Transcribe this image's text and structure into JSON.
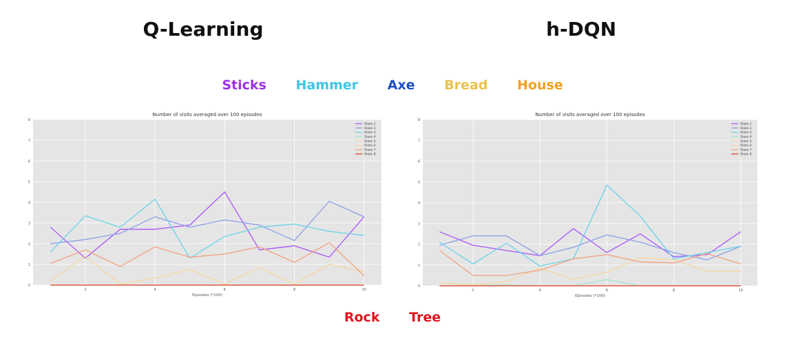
{
  "headings": {
    "left": "Q-Learning",
    "right": "h-DQN"
  },
  "top_labels": [
    {
      "text": "Sticks",
      "color": "#9b30e8"
    },
    {
      "text": "Hammer",
      "color": "#3ec6e3"
    },
    {
      "text": "Axe",
      "color": "#1e4fc4"
    },
    {
      "text": "Bread",
      "color": "#e8c24a"
    },
    {
      "text": "House",
      "color": "#f0a020"
    }
  ],
  "bottom_labels": [
    {
      "text": "Rock",
      "color": "#e0141e"
    },
    {
      "text": "Tree",
      "color": "#e0141e"
    }
  ],
  "chart_data": [
    {
      "type": "line",
      "title": "Number of visits averaged over 100 episodes",
      "xlabel": "Episodes (*100)",
      "ylabel": "",
      "xlim": [
        0.5,
        10.5
      ],
      "ylim": [
        0,
        8
      ],
      "xticks": [
        2,
        4,
        6,
        8,
        10
      ],
      "yticks": [
        0,
        1,
        2,
        3,
        4,
        5,
        6,
        7,
        8
      ],
      "grid": true,
      "legend": "top-right",
      "x": [
        1,
        2,
        3,
        4,
        5,
        6,
        7,
        8,
        9,
        10
      ],
      "series": [
        {
          "name": "State 1",
          "color": "#a855f7",
          "values": [
            2.8,
            1.3,
            2.7,
            2.7,
            2.9,
            4.5,
            1.7,
            1.9,
            1.35,
            3.3
          ]
        },
        {
          "name": "State 2",
          "color": "#8c9ee8",
          "values": [
            2.0,
            2.2,
            2.5,
            3.3,
            2.8,
            3.15,
            2.9,
            2.15,
            4.05,
            3.3
          ]
        },
        {
          "name": "State 3",
          "color": "#67d4e8",
          "values": [
            1.6,
            3.35,
            2.8,
            4.15,
            1.3,
            2.35,
            2.8,
            2.95,
            2.6,
            2.4
          ]
        },
        {
          "name": "State 4",
          "color": "#9fe8c8",
          "values": [
            0,
            0,
            0,
            0,
            0,
            0,
            0,
            0,
            0,
            0
          ]
        },
        {
          "name": "State 5",
          "color": "#f4e2b2",
          "values": [
            0,
            0,
            0,
            0,
            0,
            0,
            0,
            0,
            0,
            0
          ]
        },
        {
          "name": "State 6",
          "color": "#f5d6a0",
          "values": [
            0.2,
            1.4,
            0.05,
            0.35,
            0.75,
            0.05,
            0.85,
            0.05,
            1.0,
            0.65
          ]
        },
        {
          "name": "State 7",
          "color": "#f2a07e",
          "values": [
            1.05,
            1.7,
            0.9,
            1.85,
            1.35,
            1.5,
            1.85,
            1.1,
            2.05,
            0.45
          ]
        },
        {
          "name": "State 8",
          "color": "#e03c2a",
          "values": [
            0,
            0,
            0,
            0,
            0,
            0,
            0,
            0,
            0,
            0
          ]
        }
      ]
    },
    {
      "type": "line",
      "title": "Number of visits averaged over 100 episodes",
      "xlabel": "Episodes (*100)",
      "ylabel": "",
      "xlim": [
        0.5,
        10.5
      ],
      "ylim": [
        0,
        8
      ],
      "xticks": [
        2,
        4,
        6,
        8,
        10
      ],
      "yticks": [
        0,
        1,
        2,
        3,
        4,
        5,
        6,
        7,
        8
      ],
      "grid": true,
      "legend": "top-right",
      "x": [
        1,
        2,
        3,
        4,
        5,
        6,
        7,
        8,
        9,
        10
      ],
      "series": [
        {
          "name": "State 1",
          "color": "#a855f7",
          "values": [
            2.6,
            1.95,
            1.7,
            1.45,
            2.75,
            1.6,
            2.5,
            1.4,
            1.5,
            2.6
          ]
        },
        {
          "name": "State 2",
          "color": "#8c9ee8",
          "values": [
            1.95,
            2.4,
            2.4,
            1.45,
            1.85,
            2.45,
            2.1,
            1.6,
            1.25,
            1.9
          ]
        },
        {
          "name": "State 3",
          "color": "#67d4e8",
          "values": [
            2.1,
            1.05,
            2.05,
            0.95,
            1.3,
            4.85,
            3.35,
            1.3,
            1.6,
            1.9
          ]
        },
        {
          "name": "State 4",
          "color": "#9fe8c8",
          "values": [
            0,
            0,
            0.05,
            0,
            0,
            0.3,
            0,
            0,
            0,
            0
          ]
        },
        {
          "name": "State 5",
          "color": "#f4e2b2",
          "values": [
            0,
            0,
            0,
            0,
            0,
            0,
            0,
            0,
            0,
            0
          ]
        },
        {
          "name": "State 6",
          "color": "#f5d6a0",
          "values": [
            0.15,
            0.05,
            0.2,
            0.85,
            0.3,
            0.65,
            1.35,
            1.25,
            0.7,
            0.7
          ]
        },
        {
          "name": "State 7",
          "color": "#f2a07e",
          "values": [
            1.7,
            0.5,
            0.5,
            0.75,
            1.3,
            1.5,
            1.15,
            1.1,
            1.55,
            1.05
          ]
        },
        {
          "name": "State 8",
          "color": "#e03c2a",
          "values": [
            0,
            0,
            0,
            0,
            0,
            0,
            0,
            0,
            0,
            0
          ]
        }
      ]
    }
  ]
}
